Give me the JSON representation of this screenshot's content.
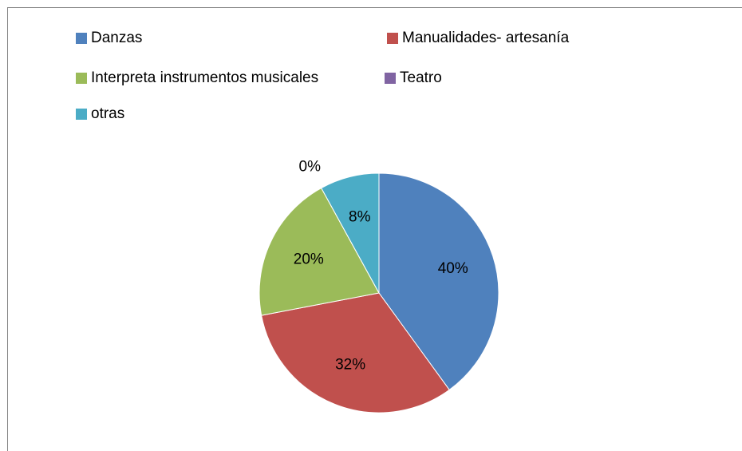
{
  "chart_data": {
    "type": "pie",
    "categories": [
      "Danzas",
      "Manualidades- artesanía",
      "Interpreta instrumentos musicales",
      "Teatro",
      "otras"
    ],
    "values": [
      40,
      32,
      20,
      0,
      8
    ],
    "value_labels": [
      "40%",
      "32%",
      "20%",
      "0%",
      "8%"
    ],
    "colors": [
      "#4f81bd",
      "#c0504d",
      "#9bbb59",
      "#8064a2",
      "#4bacc6"
    ],
    "legend": "top"
  }
}
